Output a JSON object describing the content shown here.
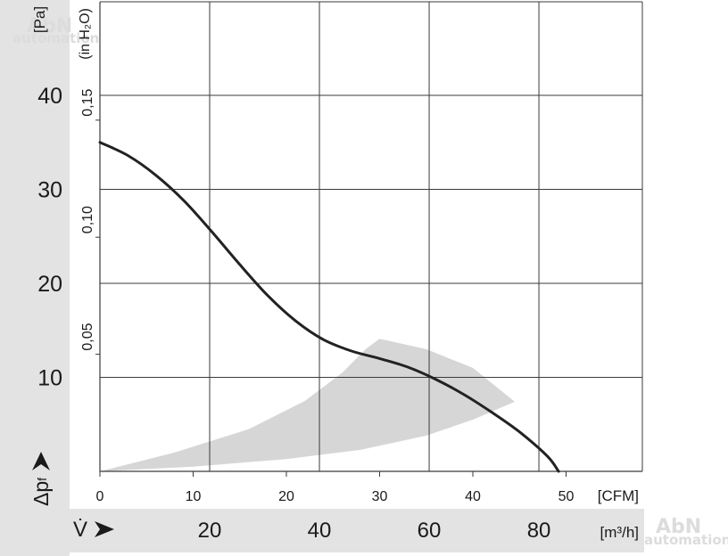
{
  "chart_data": {
    "type": "line",
    "title": "",
    "pressure_axis": {
      "unit_label": "[Pa]",
      "ticks": [
        10,
        20,
        30,
        40
      ],
      "range": [
        0,
        50
      ],
      "symbol": "Δp",
      "subscript": "f"
    },
    "inh2o_axis": {
      "unit_label": "(in H₂O)",
      "tick_labels": [
        "0,05",
        "0,10",
        "0,15"
      ],
      "ticks": [
        0.05,
        0.1,
        0.15
      ]
    },
    "cfm_axis": {
      "unit_label": "[CFM]",
      "tick_labels": [
        "0",
        "10",
        "20",
        "30",
        "40",
        "50"
      ],
      "ticks": [
        0,
        10,
        20,
        30,
        40,
        50
      ],
      "range": [
        0,
        58
      ]
    },
    "m3h_axis": {
      "symbol": "V̇",
      "unit_label": "[m³/h]",
      "ticks": [
        20,
        40,
        60,
        80
      ]
    },
    "grid": true,
    "series": [
      {
        "points_cfm_pa": [
          [
            0,
            35
          ],
          [
            3,
            33.6
          ],
          [
            6,
            31.5
          ],
          [
            9,
            28.8
          ],
          [
            12,
            25.5
          ],
          [
            15,
            22
          ],
          [
            18,
            18.7
          ],
          [
            21,
            16
          ],
          [
            24,
            14
          ],
          [
            27,
            12.8
          ],
          [
            30,
            12
          ],
          [
            33,
            11.1
          ],
          [
            36,
            9.8
          ],
          [
            39,
            8.2
          ],
          [
            42,
            6.3
          ],
          [
            45,
            4.2
          ],
          [
            48,
            1.6
          ],
          [
            49.2,
            0
          ]
        ],
        "color": "#222222"
      }
    ],
    "operating_region": {
      "upper_cfm_pa": [
        [
          0,
          0
        ],
        [
          8,
          2
        ],
        [
          16,
          4.5
        ],
        [
          22,
          7.5
        ],
        [
          26,
          10.5
        ],
        [
          28.5,
          13
        ],
        [
          30,
          14.1
        ]
      ],
      "right_cfm_pa": [
        [
          30,
          14.1
        ],
        [
          35,
          13
        ],
        [
          40,
          11
        ],
        [
          44.5,
          7.4
        ]
      ],
      "lower_cfm_pa": [
        [
          44.5,
          7.4
        ],
        [
          40,
          5.5
        ],
        [
          35,
          3.8
        ],
        [
          28,
          2.3
        ],
        [
          20,
          1.3
        ],
        [
          10,
          0.5
        ],
        [
          0,
          0
        ]
      ],
      "color": "#d6d6d6"
    },
    "colors": {
      "band": "#e3e3e3",
      "grid": "#3a3a3a",
      "text": "#1a1a1a"
    },
    "watermark": "AbN automation"
  }
}
